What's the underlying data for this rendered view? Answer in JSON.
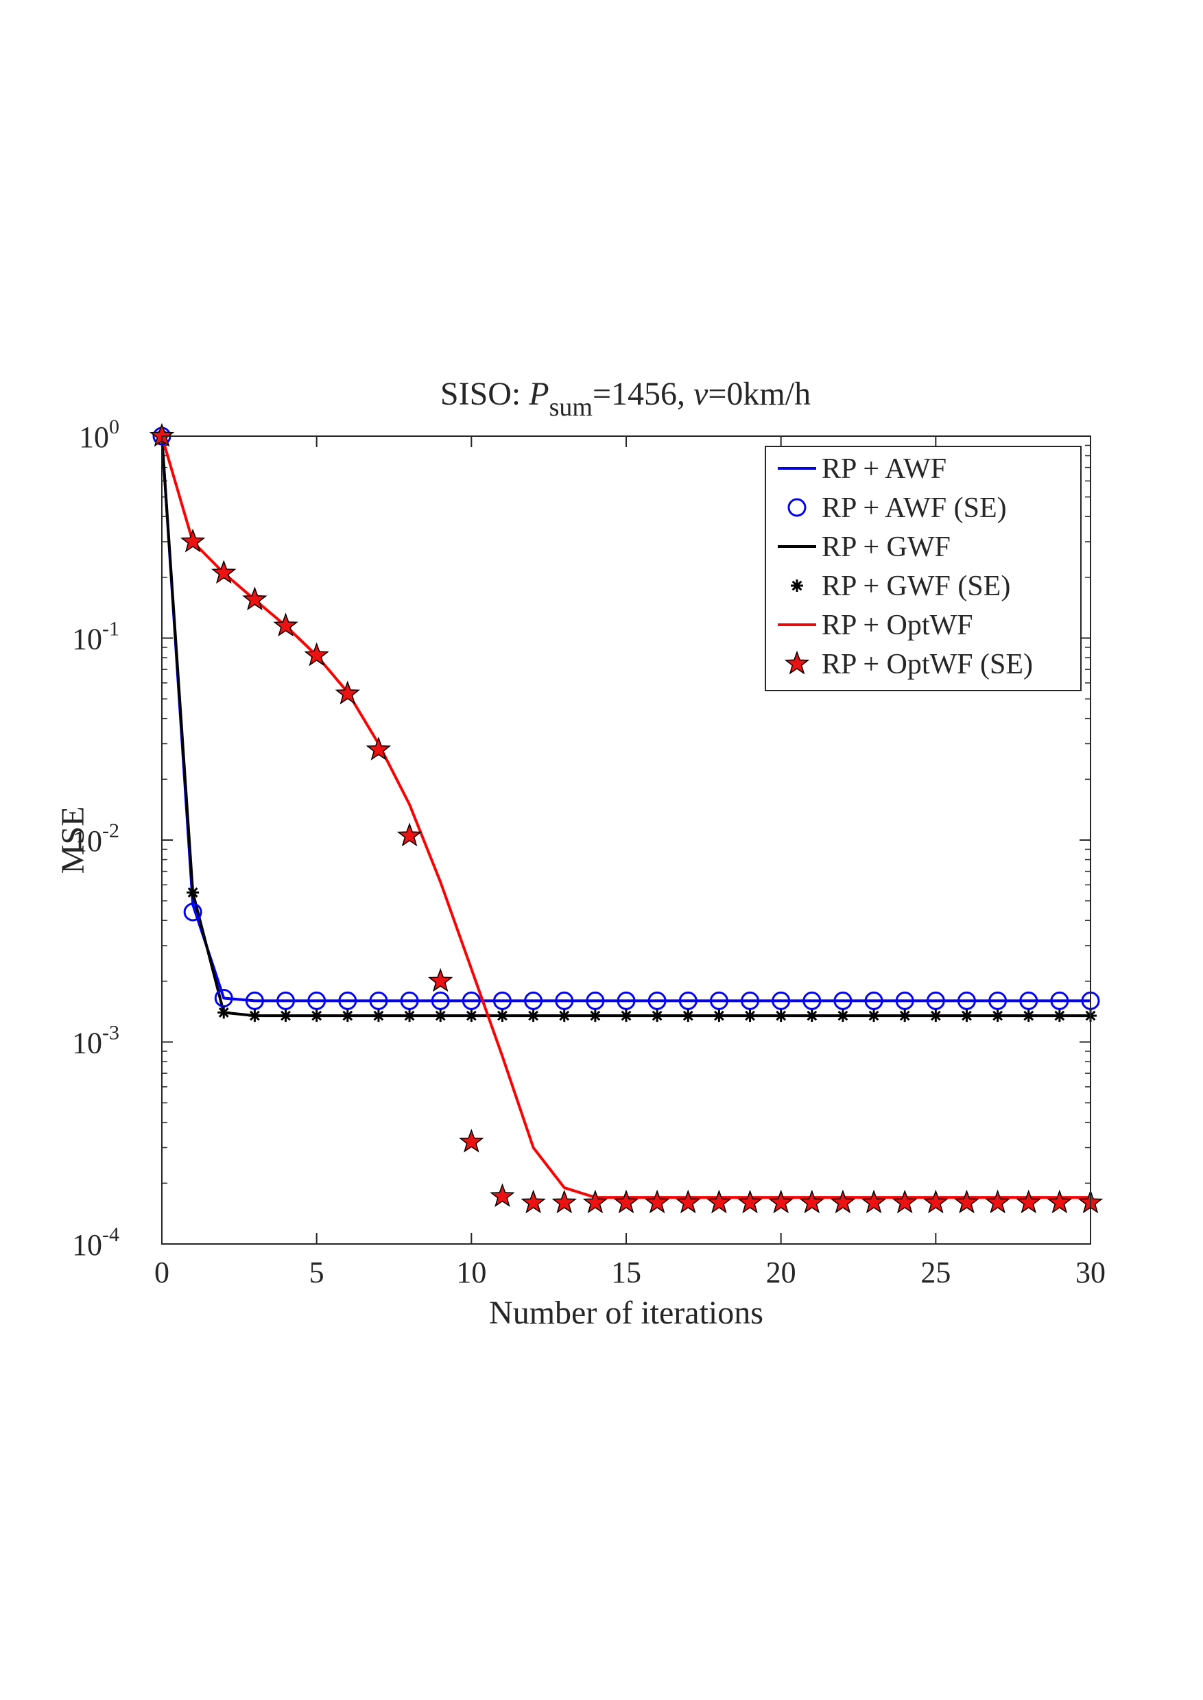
{
  "chart_data": {
    "type": "line",
    "title": {
      "prefix": "SISO: ",
      "var_p": "P",
      "subscript": "sum",
      "middle": "=1456, ",
      "var_v": "v",
      "suffix": "=0km/h"
    },
    "xlabel": "Number of iterations",
    "ylabel": "MSE",
    "xlim": [
      0,
      30
    ],
    "ylim": [
      0.0001,
      1
    ],
    "yscale": "log",
    "xticks": [
      0,
      5,
      10,
      15,
      20,
      25,
      30
    ],
    "yticks": [
      {
        "base": "10",
        "exp": "0",
        "value": 1
      },
      {
        "base": "10",
        "exp": "-1",
        "value": 0.1
      },
      {
        "base": "10",
        "exp": "-2",
        "value": 0.01
      },
      {
        "base": "10",
        "exp": "-3",
        "value": 0.001
      },
      {
        "base": "10",
        "exp": "-4",
        "value": 0.0001
      }
    ],
    "legend_position": "top-right",
    "x": [
      0,
      1,
      2,
      3,
      4,
      5,
      6,
      7,
      8,
      9,
      10,
      11,
      12,
      13,
      14,
      15,
      16,
      17,
      18,
      19,
      20,
      21,
      22,
      23,
      24,
      25,
      26,
      27,
      28,
      29,
      30
    ],
    "series": [
      {
        "name": "RP + AWF",
        "style": "line",
        "color": "#0000ff",
        "values": [
          1,
          0.0048,
          0.00165,
          0.0016,
          0.0016,
          0.0016,
          0.0016,
          0.0016,
          0.0016,
          0.0016,
          0.0016,
          0.0016,
          0.0016,
          0.0016,
          0.0016,
          0.0016,
          0.0016,
          0.0016,
          0.0016,
          0.0016,
          0.0016,
          0.0016,
          0.0016,
          0.0016,
          0.0016,
          0.0016,
          0.0016,
          0.0016,
          0.0016,
          0.0016,
          0.0016
        ]
      },
      {
        "name": "RP + AWF (SE)",
        "style": "circle",
        "color": "#0000ff",
        "values": [
          1,
          0.0044,
          0.00165,
          0.0016,
          0.0016,
          0.0016,
          0.0016,
          0.0016,
          0.0016,
          0.0016,
          0.0016,
          0.0016,
          0.0016,
          0.0016,
          0.0016,
          0.0016,
          0.0016,
          0.0016,
          0.0016,
          0.0016,
          0.0016,
          0.0016,
          0.0016,
          0.0016,
          0.0016,
          0.0016,
          0.0016,
          0.0016,
          0.0016,
          0.0016,
          0.0016
        ]
      },
      {
        "name": "RP + GWF",
        "style": "line",
        "color": "#000000",
        "values": [
          1,
          0.0055,
          0.0014,
          0.00135,
          0.00135,
          0.00135,
          0.00135,
          0.00135,
          0.00135,
          0.00135,
          0.00135,
          0.00135,
          0.00135,
          0.00135,
          0.00135,
          0.00135,
          0.00135,
          0.00135,
          0.00135,
          0.00135,
          0.00135,
          0.00135,
          0.00135,
          0.00135,
          0.00135,
          0.00135,
          0.00135,
          0.00135,
          0.00135,
          0.00135,
          0.00135
        ]
      },
      {
        "name": "RP + GWF (SE)",
        "style": "asterisk",
        "color": "#000000",
        "values": [
          1,
          0.0055,
          0.0014,
          0.00135,
          0.00135,
          0.00135,
          0.00135,
          0.00135,
          0.00135,
          0.00135,
          0.00135,
          0.00135,
          0.00135,
          0.00135,
          0.00135,
          0.00135,
          0.00135,
          0.00135,
          0.00135,
          0.00135,
          0.00135,
          0.00135,
          0.00135,
          0.00135,
          0.00135,
          0.00135,
          0.00135,
          0.00135,
          0.00135,
          0.00135,
          0.00135
        ]
      },
      {
        "name": "RP + OptWF",
        "style": "line",
        "color": "#ff0000",
        "values": [
          1,
          0.3,
          0.21,
          0.155,
          0.115,
          0.082,
          0.054,
          0.03,
          0.015,
          0.0062,
          0.0023,
          0.00085,
          0.0003,
          0.00019,
          0.00017,
          0.00017,
          0.00017,
          0.00017,
          0.00017,
          0.00017,
          0.00017,
          0.00017,
          0.00017,
          0.00017,
          0.00017,
          0.00017,
          0.00017,
          0.00017,
          0.00017,
          0.00017,
          0.00017
        ]
      },
      {
        "name": "RP + OptWF (SE)",
        "style": "star",
        "color": "#ee1111",
        "values": [
          1,
          0.3,
          0.21,
          0.155,
          0.115,
          0.082,
          0.053,
          0.028,
          0.0105,
          0.002,
          0.00032,
          0.000172,
          0.00016,
          0.00016,
          0.00016,
          0.00016,
          0.00016,
          0.00016,
          0.00016,
          0.00016,
          0.00016,
          0.00016,
          0.00016,
          0.00016,
          0.00016,
          0.00016,
          0.00016,
          0.00016,
          0.00016,
          0.00016,
          0.00016
        ]
      }
    ]
  }
}
